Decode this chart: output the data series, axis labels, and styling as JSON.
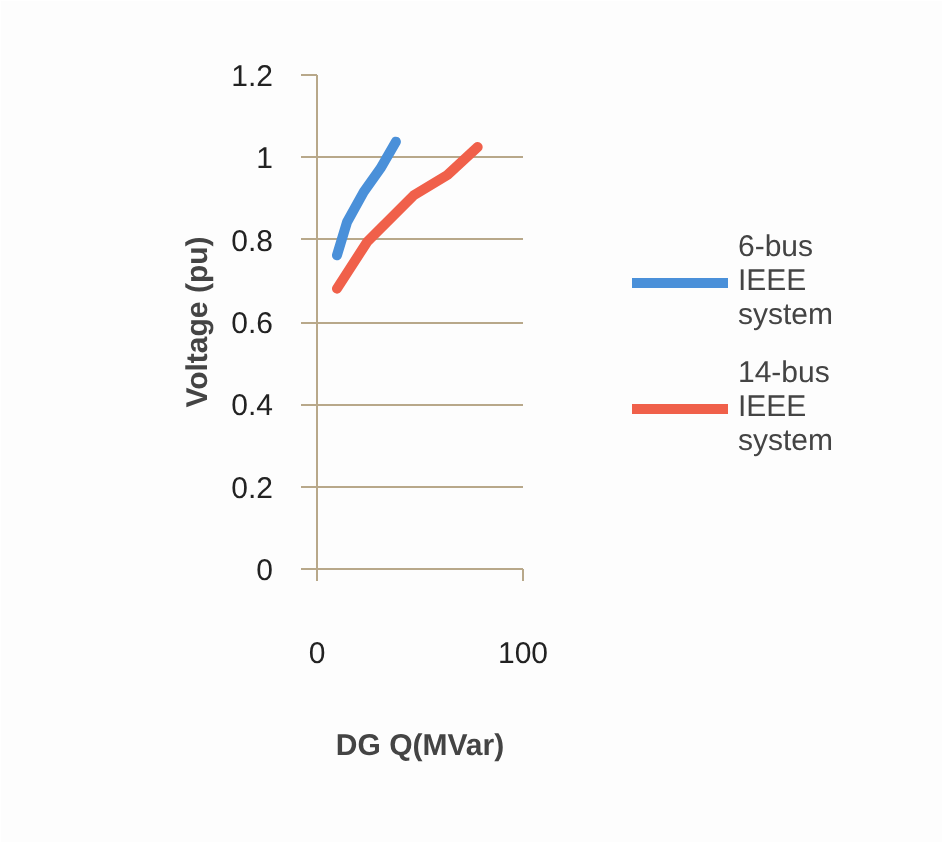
{
  "chart_data": {
    "type": "line",
    "xlabel": "DG Q(MVar)",
    "ylabel": "Voltage (pu)",
    "xlim": [
      0,
      100
    ],
    "xticks": [
      0,
      100
    ],
    "ylim": [
      0,
      1.2
    ],
    "yticks": [
      0,
      0.2,
      0.4,
      0.6,
      0.8,
      1,
      1.2
    ],
    "grid": "y",
    "legend": "right",
    "marker": "none",
    "line_style": "solid",
    "series": [
      {
        "name": "6-bus IEEE system",
        "color": "#4a90d9",
        "x": [
          9.7,
          14.6,
          22.7,
          30.8,
          38.3
        ],
        "values": [
          0.762,
          0.843,
          0.916,
          0.973,
          1.038
        ]
      },
      {
        "name": "14-bus IEEE system",
        "color": "#f0604a",
        "x": [
          9.7,
          24.4,
          34,
          47,
          63.3,
          78
        ],
        "values": [
          0.681,
          0.795,
          0.843,
          0.908,
          0.957,
          1.025
        ]
      }
    ]
  }
}
